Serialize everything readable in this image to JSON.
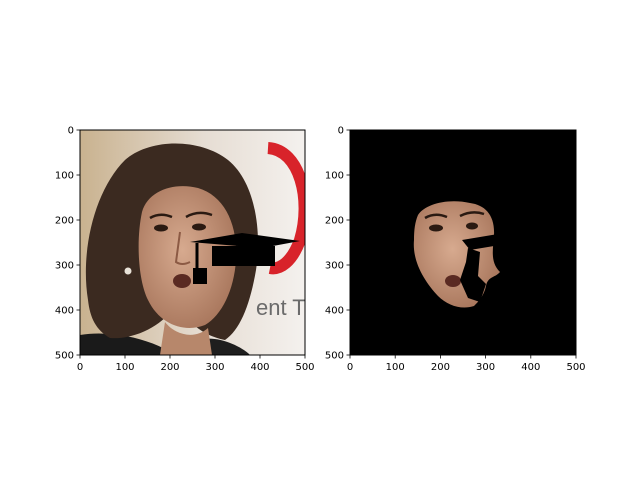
{
  "chart_data": [
    {
      "type": "image",
      "content": "face-photo-with-graduation-cap-overlay",
      "xlim": [
        0,
        500
      ],
      "ylim": [
        500,
        0
      ],
      "xticks": [
        "0",
        "100",
        "200",
        "300",
        "400",
        "500"
      ],
      "yticks": [
        "0",
        "100",
        "200",
        "300",
        "400",
        "500"
      ],
      "xlabel": "",
      "ylabel": "",
      "title": ""
    },
    {
      "type": "image",
      "content": "segmented-face-on-black-background",
      "xlim": [
        0,
        500
      ],
      "ylim": [
        500,
        0
      ],
      "xticks": [
        "0",
        "100",
        "200",
        "300",
        "400",
        "500"
      ],
      "yticks": [
        "0",
        "100",
        "200",
        "300",
        "400",
        "500"
      ],
      "xlabel": "",
      "ylabel": "",
      "title": ""
    }
  ],
  "colors": {
    "background_left": "#e9e4df",
    "hair": "#3b2a20",
    "skin": "#c99a80",
    "cap": "#000000",
    "mask_bg": "#000000",
    "logo_red": "#d8232a",
    "text_gray": "#6b6b6b"
  },
  "scene_text": {
    "logo_fragment": "ent T",
    "logo_fragment_small": "T"
  }
}
